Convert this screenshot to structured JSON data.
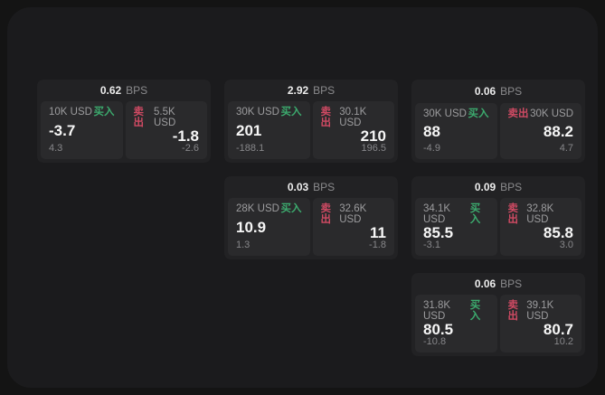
{
  "page": {
    "bg_outer": "#141414",
    "bg_panel": "#1b1b1d"
  },
  "colors": {
    "card_bg": "#222224",
    "tile_bg": "#2a2a2c",
    "buy_accent": "#3cab6e",
    "sell_accent": "#cf4a63",
    "price_text": "#f6f6f6",
    "muted_text": "#9c9c9e"
  },
  "labels": {
    "bps": "BPS",
    "buy": "买入",
    "sell": "卖出"
  },
  "cards": [
    {
      "row": 1,
      "col": 1,
      "bps": "0.62",
      "buy": {
        "notional": "10K USD",
        "price": "-3.7",
        "delta": "4.3"
      },
      "sell": {
        "notional": "5.5K USD",
        "price": "-1.8",
        "delta": "-2.6"
      }
    },
    {
      "row": 1,
      "col": 2,
      "bps": "2.92",
      "buy": {
        "notional": "30K USD",
        "price": "201",
        "delta": "-188.1"
      },
      "sell": {
        "notional": "30.1K USD",
        "price": "210",
        "delta": "196.5"
      }
    },
    {
      "row": 1,
      "col": 3,
      "bps": "0.06",
      "buy": {
        "notional": "30K USD",
        "price": "88",
        "delta": "-4.9"
      },
      "sell": {
        "notional": "30K USD",
        "price": "88.2",
        "delta": "4.7"
      }
    },
    {
      "row": 2,
      "col": 2,
      "bps": "0.03",
      "buy": {
        "notional": "28K USD",
        "price": "10.9",
        "delta": "1.3"
      },
      "sell": {
        "notional": "32.6K USD",
        "price": "11",
        "delta": "-1.8"
      }
    },
    {
      "row": 2,
      "col": 3,
      "bps": "0.09",
      "buy": {
        "notional": "34.1K USD",
        "price": "85.5",
        "delta": "-3.1"
      },
      "sell": {
        "notional": "32.8K USD",
        "price": "85.8",
        "delta": "3.0"
      }
    },
    {
      "row": 3,
      "col": 3,
      "bps": "0.06",
      "buy": {
        "notional": "31.8K USD",
        "price": "80.5",
        "delta": "-10.8"
      },
      "sell": {
        "notional": "39.1K USD",
        "price": "80.7",
        "delta": "10.2"
      }
    }
  ]
}
